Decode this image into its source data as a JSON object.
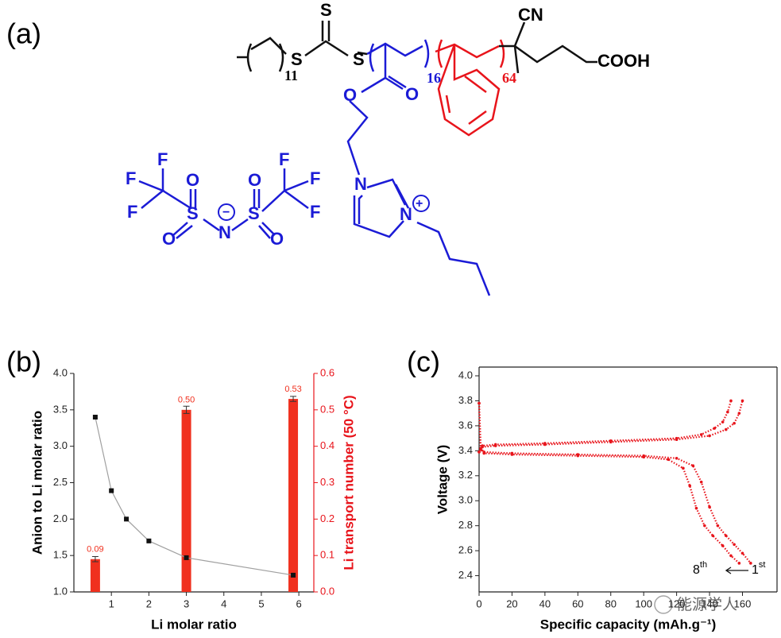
{
  "panels": {
    "a": "(a)",
    "b": "(b)",
    "c": "(c)"
  },
  "structure": {
    "atoms": [
      "S",
      "S",
      "S",
      "CN",
      "COOH",
      "O",
      "O",
      "N",
      "N",
      "+",
      "F",
      "F",
      "F",
      "O",
      "S",
      "O",
      "N",
      "−",
      "S",
      "O",
      "O",
      "F",
      "F",
      "F"
    ],
    "repeats": [
      "11",
      "16",
      "64"
    ]
  },
  "watermark": "能源学人",
  "chart_data": [
    {
      "type": "bar",
      "xlabel": "Li molar ratio",
      "ylabel": "Anion to Li molar ratio",
      "y2label": "Li transport number (50 °C)",
      "xlim": [
        0,
        6.4
      ],
      "xticks": [
        1,
        2,
        3,
        4,
        5,
        6
      ],
      "ylim": [
        1.0,
        4.0
      ],
      "yticks": [
        {
          "value": 1.0,
          "label": "1.0"
        },
        {
          "value": 1.5,
          "label": "1.5"
        },
        {
          "value": 2.0,
          "label": "2.0"
        },
        {
          "value": 2.5,
          "label": "2.5"
        },
        {
          "value": 3.0,
          "label": "3.0"
        },
        {
          "value": 3.5,
          "label": "3.5"
        },
        {
          "value": 4.0,
          "label": "4.0"
        }
      ],
      "y2lim": [
        0.0,
        0.6
      ],
      "y2ticks": [
        {
          "value": 0.0,
          "label": "0.0"
        },
        {
          "value": 0.1,
          "label": "0.1"
        },
        {
          "value": 0.2,
          "label": "0.2"
        },
        {
          "value": 0.3,
          "label": "0.3"
        },
        {
          "value": 0.4,
          "label": "0.4"
        },
        {
          "value": 0.5,
          "label": "0.5"
        },
        {
          "value": 0.6,
          "label": "0.6"
        }
      ],
      "y2color": "#e8141b",
      "series": [
        {
          "type": "bar",
          "axis": "y2",
          "color": "#f0301e",
          "x": [
            0.57,
            3.0,
            5.85
          ],
          "values": [
            0.09,
            0.5,
            0.53
          ],
          "value_labels": [
            "0.09",
            "0.50",
            "0.53"
          ],
          "errors": [
            0.007,
            0.01,
            0.007
          ]
        },
        {
          "type": "line",
          "color": "#a0a0a0",
          "marker_color": "#111111",
          "x": [
            0.57,
            1.0,
            1.4,
            2.0,
            3.0,
            5.85
          ],
          "values": [
            3.4,
            2.39,
            2.0,
            1.7,
            1.47,
            1.23
          ]
        }
      ]
    },
    {
      "type": "scatter",
      "xlabel": "Specific capacity (mAh.g⁻¹)",
      "ylabel": "Voltage (V)",
      "xlim": [
        0,
        181
      ],
      "xticks": [
        0,
        20,
        40,
        60,
        80,
        100,
        120,
        140,
        160
      ],
      "ylim": [
        2.27,
        4.07
      ],
      "yticks": [
        {
          "value": 2.4,
          "label": "2.4"
        },
        {
          "value": 2.6,
          "label": "2.6"
        },
        {
          "value": 2.8,
          "label": "2.8"
        },
        {
          "value": 3.0,
          "label": "3.0"
        },
        {
          "value": 3.2,
          "label": "3.2"
        },
        {
          "value": 3.4,
          "label": "3.4"
        },
        {
          "value": 3.6,
          "label": "3.6"
        },
        {
          "value": 3.8,
          "label": "3.8"
        },
        {
          "value": 4.0,
          "label": "4.0"
        }
      ],
      "annotations": [
        {
          "base": "8",
          "sup": "th"
        },
        {
          "base": "1",
          "sup": "st"
        }
      ],
      "series": [
        {
          "color": "#e8141b",
          "x": [
            0,
            2,
            10,
            40,
            80,
            120,
            140,
            150,
            155,
            158,
            160
          ],
          "values": [
            3.39,
            3.43,
            3.44,
            3.45,
            3.47,
            3.49,
            3.52,
            3.57,
            3.62,
            3.7,
            3.8
          ]
        },
        {
          "color": "#e8141b",
          "x": [
            0,
            2,
            10,
            40,
            80,
            120,
            135,
            143,
            148,
            151,
            153
          ],
          "values": [
            3.39,
            3.44,
            3.45,
            3.46,
            3.48,
            3.5,
            3.53,
            3.58,
            3.63,
            3.71,
            3.8
          ]
        },
        {
          "color": "#e8141b",
          "x": [
            0,
            1,
            3,
            20,
            60,
            100,
            120,
            130,
            135,
            140,
            145,
            150,
            155,
            160,
            165
          ],
          "values": [
            3.78,
            3.42,
            3.39,
            3.38,
            3.37,
            3.36,
            3.34,
            3.28,
            3.15,
            2.95,
            2.8,
            2.72,
            2.65,
            2.58,
            2.5
          ]
        },
        {
          "color": "#e8141b",
          "x": [
            0,
            1,
            3,
            20,
            60,
            100,
            115,
            124,
            128,
            132,
            137,
            142,
            148,
            153,
            158
          ],
          "values": [
            3.78,
            3.41,
            3.38,
            3.37,
            3.36,
            3.35,
            3.33,
            3.26,
            3.12,
            2.94,
            2.8,
            2.72,
            2.64,
            2.56,
            2.5
          ]
        }
      ]
    }
  ]
}
